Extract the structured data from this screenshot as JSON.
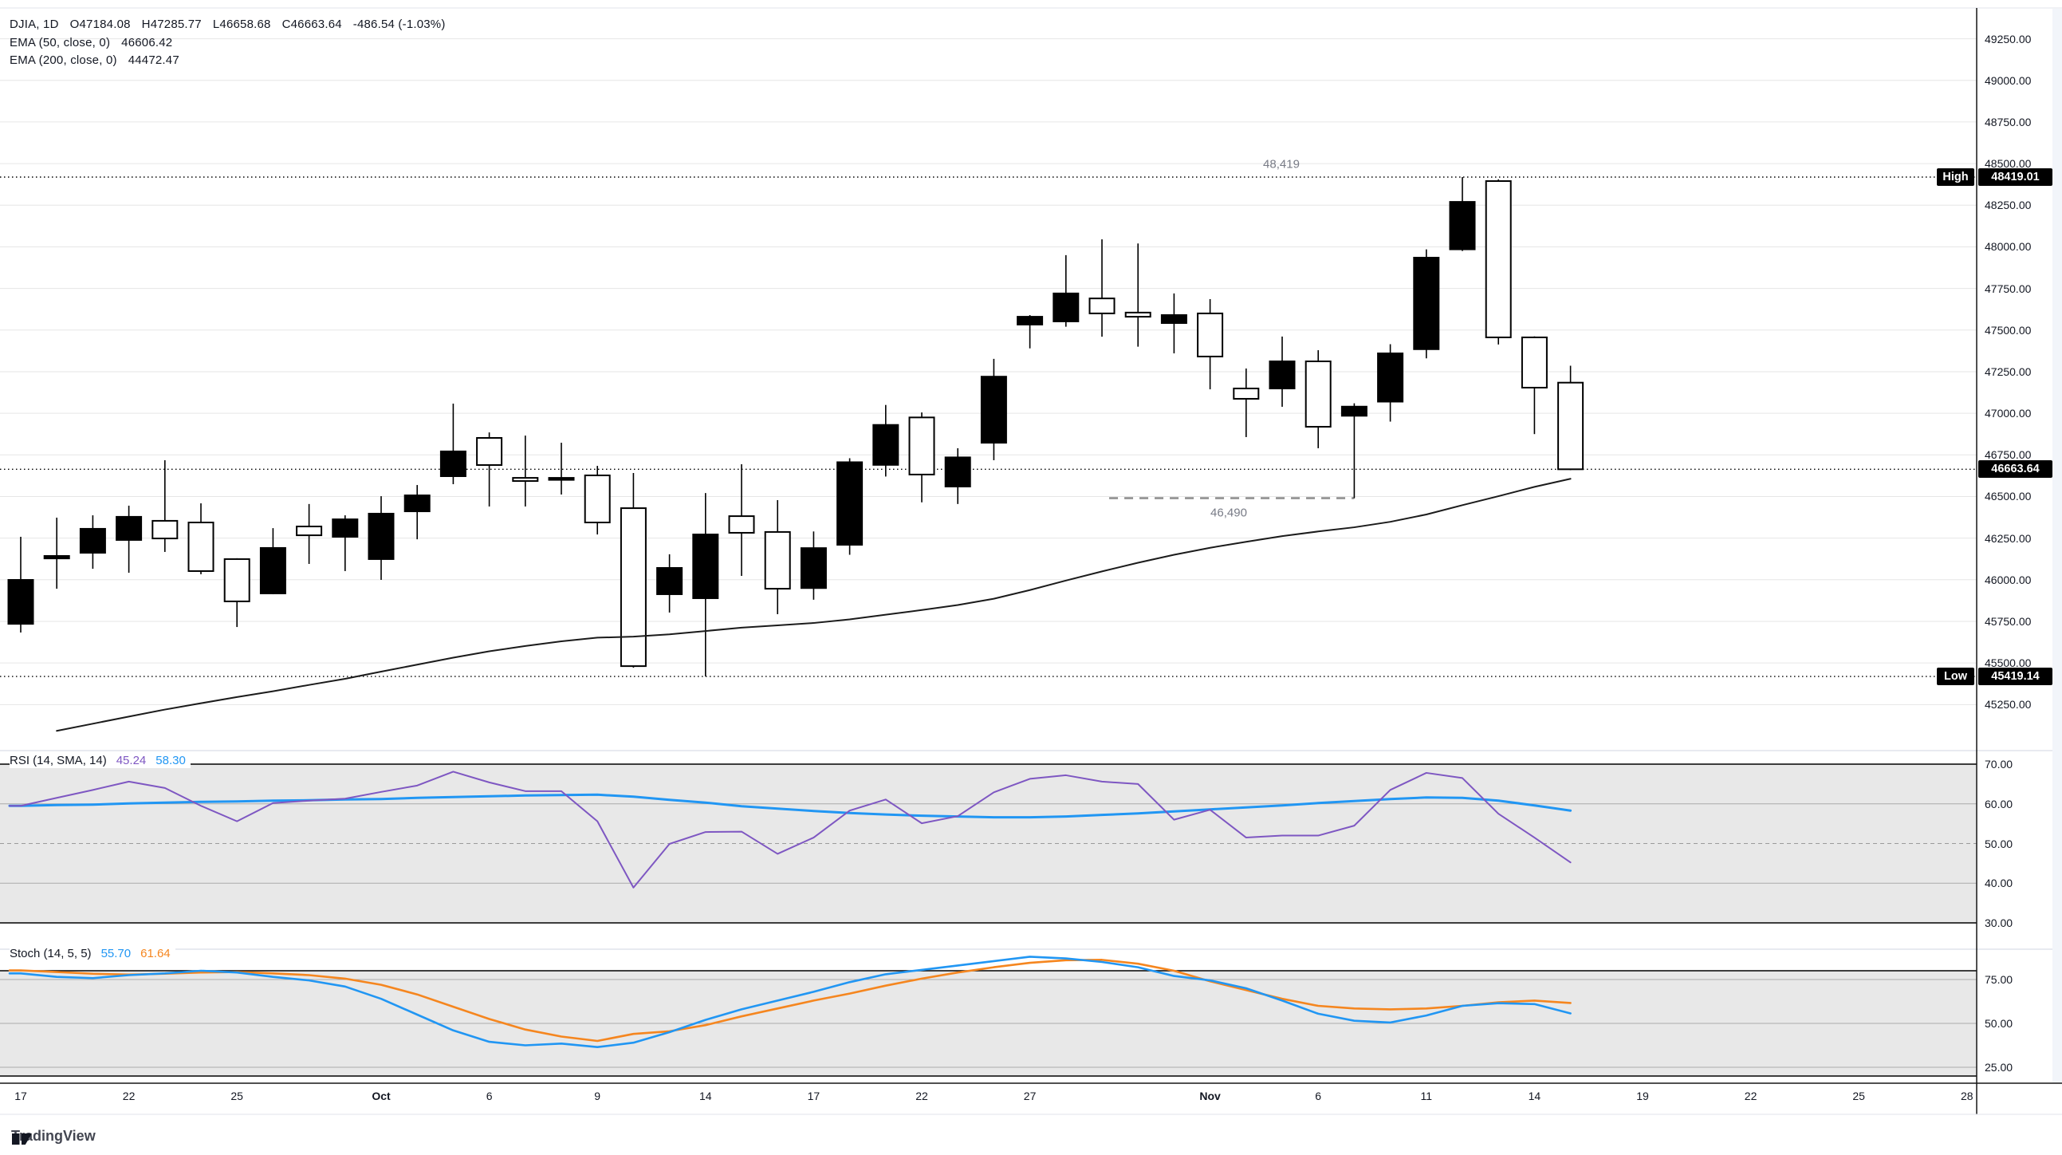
{
  "legend": {
    "symbol": "DJIA, 1D",
    "open": "O47184.08",
    "high": "H47285.77",
    "low": "L46658.68",
    "close": "C46663.64",
    "change": "-486.54 (-1.03%)",
    "ema50_label": "EMA (50, close, 0)",
    "ema50_value": "46606.42",
    "ema200_label": "EMA (200, close, 0)",
    "ema200_value": "44472.47"
  },
  "rsi_panel": {
    "label": "RSI (14, SMA, 14)",
    "rsi_value": "45.24",
    "sma_value": "58.30"
  },
  "stoch_panel": {
    "label": "Stoch (14, 5, 5)",
    "k_value": "55.70",
    "d_value": "61.64"
  },
  "badges": {
    "high_label": "High",
    "high_value": "48419.01",
    "low_label": "Low",
    "low_value": "45419.14",
    "last_value": "46663.64"
  },
  "annotations": {
    "high_line_label": "48,419",
    "support_line_label": "46,490"
  },
  "watermark": "TradingView",
  "colors": {
    "up_candle": "#000000",
    "down_candle_border": "#000000",
    "down_candle_fill": "#ffffff",
    "ema": "#1b1b1b",
    "rsi": "#7e57c2",
    "rsi_sma": "#2196f3",
    "stoch_k": "#2196f3",
    "stoch_d": "#f5861f",
    "grid": "#e6e6e6",
    "band_fill": "#e8e8e8",
    "band_grid": "#ababab",
    "text": "#131722",
    "muted_text": "#787b86",
    "separator": "#e0e3eb",
    "frame": "#161616"
  },
  "chart_data": {
    "type": "candlestick",
    "title": "DJIA, 1D with EMA(50), EMA(200), RSI(14,SMA,14), Stoch(14,5,5)",
    "price_axis_ticks": [
      49250,
      49000,
      48750,
      48500,
      48250,
      48000,
      47750,
      47500,
      47250,
      47000,
      46750,
      46500,
      46250,
      46000,
      45750,
      45500,
      45250
    ],
    "price_axis_labels": [
      "49250.00",
      "49000.00",
      "48750.00",
      "48500.00",
      "48250.00",
      "48000.00",
      "47750.00",
      "47500.00",
      "47250.00",
      "47000.00",
      "46750.00",
      "46500.00",
      "46250.00",
      "46000.00",
      "45750.00",
      "45500.00",
      "45250.00"
    ],
    "price_range_visible": [
      44975,
      49435
    ],
    "high_marker": 48419.01,
    "low_marker": 45419.14,
    "last_price": 46663.64,
    "support_level": 46490,
    "support_span_indices": [
      30.2,
      37
    ],
    "time_ticks": [
      {
        "label": "17",
        "index": 0
      },
      {
        "label": "22",
        "index": 3
      },
      {
        "label": "25",
        "index": 6
      },
      {
        "label": "Oct",
        "index": 10,
        "bold": true
      },
      {
        "label": "6",
        "index": 13
      },
      {
        "label": "9",
        "index": 16
      },
      {
        "label": "14",
        "index": 19
      },
      {
        "label": "17",
        "index": 22
      },
      {
        "label": "22",
        "index": 25
      },
      {
        "label": "27",
        "index": 28
      },
      {
        "label": "Nov",
        "index": 33,
        "bold": true
      },
      {
        "label": "6",
        "index": 36
      },
      {
        "label": "11",
        "index": 39
      },
      {
        "label": "14",
        "index": 42
      },
      {
        "label": "19",
        "index": 45
      },
      {
        "label": "22",
        "index": 48
      },
      {
        "label": "25",
        "index": 51
      },
      {
        "label": "28",
        "index": 54
      }
    ],
    "candles_ohlc": [
      [
        45735,
        46258,
        45683,
        45999
      ],
      [
        46128,
        46373,
        45946,
        46143
      ],
      [
        46162,
        46387,
        46066,
        46306
      ],
      [
        46239,
        46445,
        46042,
        46378
      ],
      [
        46354,
        46718,
        46167,
        46248
      ],
      [
        46344,
        46459,
        46033,
        46052
      ],
      [
        46124,
        46129,
        45716,
        45870
      ],
      [
        45918,
        46310,
        45913,
        46191
      ],
      [
        46320,
        46455,
        46095,
        46267
      ],
      [
        46258,
        46387,
        46052,
        46363
      ],
      [
        46124,
        46502,
        45999,
        46397
      ],
      [
        46411,
        46569,
        46243,
        46507
      ],
      [
        46622,
        47058,
        46574,
        46771
      ],
      [
        46852,
        46885,
        46440,
        46689
      ],
      [
        46612,
        46866,
        46440,
        46593
      ],
      [
        46600,
        46823,
        46512,
        46612
      ],
      [
        46627,
        46684,
        46272,
        46344
      ],
      [
        46430,
        46641,
        45472,
        45481
      ],
      [
        45913,
        46153,
        45803,
        46071
      ],
      [
        45889,
        46521,
        45419.14,
        46272
      ],
      [
        46382,
        46694,
        46023,
        46282
      ],
      [
        46287,
        46478,
        45793,
        45946
      ],
      [
        45950,
        46290,
        45880,
        46190
      ],
      [
        46210,
        46730,
        46150,
        46706
      ],
      [
        46690,
        47050,
        46620,
        46930
      ],
      [
        46975,
        47005,
        46465,
        46632
      ],
      [
        46560,
        46790,
        46455,
        46735
      ],
      [
        46823,
        47327,
        46718,
        47220
      ],
      [
        47533,
        47590,
        47390,
        47580
      ],
      [
        47552,
        47950,
        47520,
        47720
      ],
      [
        47690,
        48045,
        47460,
        47600
      ],
      [
        47605,
        48020,
        47400,
        47580
      ],
      [
        47542,
        47720,
        47360,
        47590
      ],
      [
        47600,
        47686,
        47144,
        47341
      ],
      [
        47149,
        47269,
        46857,
        47087
      ],
      [
        47149,
        47461,
        47039,
        47312
      ],
      [
        47312,
        47379,
        46790,
        46919
      ],
      [
        46985,
        47060,
        46490,
        47040
      ],
      [
        47070,
        47415,
        46950,
        47360
      ],
      [
        47385,
        47985,
        47330,
        47935
      ],
      [
        47985,
        48419.01,
        47975,
        48270
      ],
      [
        48395,
        48405,
        47413,
        47456
      ],
      [
        47456,
        47462,
        46875,
        47154
      ],
      [
        47184.08,
        47285.77,
        46658.68,
        46663.64
      ]
    ],
    "ema50": [
      45048,
      45092,
      45135,
      45178,
      45220,
      45258,
      45295,
      45330,
      45368,
      45405,
      45448,
      45490,
      45532,
      45570,
      45602,
      45630,
      45652,
      45658,
      45672,
      45692,
      45712,
      45726,
      45740,
      45762,
      45790,
      45818,
      45848,
      45886,
      45938,
      45995,
      46050,
      46102,
      46150,
      46192,
      46228,
      46262,
      46290,
      46315,
      46348,
      46392,
      46448,
      46502,
      46558,
      46606.42
    ],
    "rsi_pane": {
      "axis_ticks": [
        70,
        60,
        50,
        40,
        30
      ],
      "axis_labels": [
        "70.00",
        "60.00",
        "50.00",
        "40.00",
        "30.00"
      ],
      "band": [
        70,
        30
      ],
      "dashed_mid": 50,
      "rsi": [
        59.5,
        61.5,
        63.5,
        65.6,
        64.0,
        59.5,
        55.6,
        60.2,
        60.8,
        61.3,
        63.0,
        64.6,
        68.1,
        65.4,
        63.2,
        63.2,
        55.6,
        38.9,
        49.9,
        52.9,
        53.0,
        47.4,
        51.5,
        58.3,
        61.1,
        55.1,
        56.9,
        62.9,
        66.3,
        67.2,
        65.6,
        65.0,
        56.0,
        58.5,
        51.5,
        52.0,
        52.0,
        54.5,
        63.5,
        67.8,
        66.5,
        57.5,
        51.5,
        45.24
      ],
      "rsi_sma": [
        59.5,
        59.7,
        59.8,
        60.1,
        60.3,
        60.5,
        60.6,
        60.8,
        60.9,
        61.1,
        61.2,
        61.5,
        61.7,
        61.9,
        62.1,
        62.2,
        62.3,
        61.8,
        61.0,
        60.3,
        59.4,
        58.8,
        58.2,
        57.7,
        57.3,
        57.0,
        56.8,
        56.6,
        56.6,
        56.8,
        57.2,
        57.6,
        58.1,
        58.6,
        59.1,
        59.6,
        60.2,
        60.7,
        61.2,
        61.6,
        61.5,
        60.8,
        59.6,
        58.3
      ]
    },
    "stoch_pane": {
      "axis_ticks": [
        75,
        50,
        25
      ],
      "axis_labels": [
        "75.00",
        "50.00",
        "25.00"
      ],
      "band": [
        80,
        20
      ],
      "k": [
        78.5,
        76.5,
        75.8,
        77.5,
        78.5,
        80.0,
        79.0,
        76.5,
        74.5,
        71.0,
        64.0,
        55.0,
        46.0,
        39.5,
        37.5,
        38.5,
        36.5,
        39.0,
        45.0,
        52.0,
        58.0,
        63.0,
        68.0,
        73.5,
        78.0,
        80.5,
        83.0,
        85.5,
        88.0,
        87.0,
        85.0,
        82.0,
        77.0,
        74.5,
        70.0,
        63.0,
        55.5,
        51.5,
        50.5,
        54.5,
        60.0,
        61.5,
        61.0,
        55.7
      ],
      "d": [
        80.2,
        79.3,
        78.3,
        77.8,
        78.3,
        79.0,
        79.3,
        78.5,
        77.5,
        75.5,
        72.0,
        66.5,
        59.5,
        52.5,
        46.5,
        42.5,
        40.0,
        44.0,
        45.5,
        49.0,
        54.0,
        58.5,
        63.0,
        67.0,
        71.5,
        75.5,
        79.0,
        82.0,
        84.5,
        86.0,
        86.2,
        84.0,
        80.0,
        74.0,
        69.0,
        64.0,
        60.0,
        58.5,
        58.0,
        58.5,
        60.0,
        62.0,
        63.0,
        61.64
      ]
    }
  }
}
